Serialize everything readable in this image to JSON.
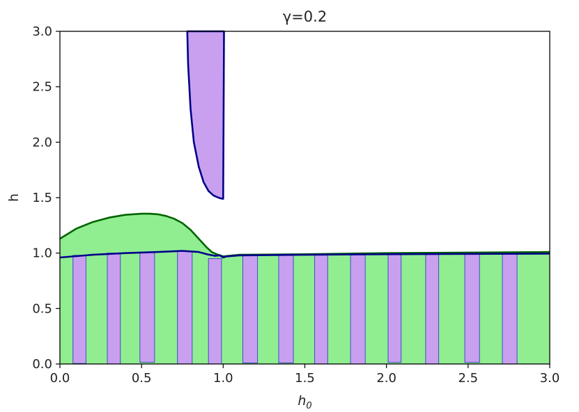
{
  "chart_data": {
    "type": "area",
    "title": "γ=0.2",
    "xlabel": "h",
    "xlabel_subscript": "0",
    "ylabel": "h",
    "xlim": [
      0.0,
      3.0
    ],
    "ylim": [
      0.0,
      3.0
    ],
    "xticks": [
      "0.0",
      "0.5",
      "1.0",
      "1.5",
      "2.0",
      "2.5",
      "3.0"
    ],
    "yticks": [
      "0.0",
      "0.5",
      "1.0",
      "1.5",
      "2.0",
      "2.5",
      "3.0"
    ],
    "grid": false,
    "colors": {
      "green_fill": "#90ee90",
      "green_line": "#006400",
      "purple_fill": "#c8a0ef",
      "purple_line": "#00008b",
      "bar_edge": "#3a4fc0"
    },
    "green_region": {
      "upper_boundary": [
        [
          0.0,
          1.13
        ],
        [
          0.1,
          1.22
        ],
        [
          0.2,
          1.28
        ],
        [
          0.3,
          1.32
        ],
        [
          0.4,
          1.345
        ],
        [
          0.5,
          1.355
        ],
        [
          0.55,
          1.355
        ],
        [
          0.6,
          1.35
        ],
        [
          0.65,
          1.335
        ],
        [
          0.7,
          1.31
        ],
        [
          0.75,
          1.27
        ],
        [
          0.8,
          1.21
        ],
        [
          0.85,
          1.13
        ],
        [
          0.9,
          1.05
        ],
        [
          0.93,
          1.01
        ],
        [
          0.96,
          0.99
        ],
        [
          1.0,
          0.97
        ],
        [
          1.1,
          0.985
        ],
        [
          1.5,
          0.99
        ],
        [
          2.0,
          1.0
        ],
        [
          2.5,
          1.005
        ],
        [
          3.0,
          1.01
        ]
      ],
      "lower_boundary": 0.0
    },
    "blue_line": [
      [
        0.0,
        0.96
      ],
      [
        0.2,
        0.985
      ],
      [
        0.4,
        1.0
      ],
      [
        0.6,
        1.01
      ],
      [
        0.75,
        1.02
      ],
      [
        0.85,
        1.01
      ],
      [
        0.9,
        0.99
      ],
      [
        0.95,
        0.975
      ],
      [
        0.98,
        0.98
      ],
      [
        1.0,
        0.96
      ],
      [
        1.02,
        0.97
      ],
      [
        1.1,
        0.98
      ],
      [
        1.5,
        0.985
      ],
      [
        2.0,
        0.99
      ],
      [
        2.5,
        0.993
      ],
      [
        3.0,
        0.995
      ]
    ],
    "purple_spike": {
      "left_edge": [
        [
          0.78,
          3.0
        ],
        [
          0.785,
          2.7
        ],
        [
          0.8,
          2.3
        ],
        [
          0.82,
          2.0
        ],
        [
          0.85,
          1.78
        ],
        [
          0.88,
          1.64
        ],
        [
          0.91,
          1.56
        ],
        [
          0.94,
          1.52
        ],
        [
          0.97,
          1.5
        ],
        [
          0.995,
          1.49
        ]
      ],
      "right_edge": [
        [
          1.0,
          1.49
        ],
        [
          1.005,
          3.0
        ]
      ]
    },
    "purple_bars": [
      {
        "x0": 0.08,
        "x1": 0.16,
        "y0": 0.005,
        "y1": 0.98
      },
      {
        "x0": 0.29,
        "x1": 0.37,
        "y0": 0.0,
        "y1": 1.0
      },
      {
        "x0": 0.49,
        "x1": 0.58,
        "y0": 0.015,
        "y1": 1.01
      },
      {
        "x0": 0.72,
        "x1": 0.81,
        "y0": 0.0,
        "y1": 1.02
      },
      {
        "x0": 0.91,
        "x1": 0.99,
        "y0": 0.0,
        "y1": 0.95
      },
      {
        "x0": 1.12,
        "x1": 1.21,
        "y0": 0.01,
        "y1": 0.98
      },
      {
        "x0": 1.34,
        "x1": 1.43,
        "y0": 0.01,
        "y1": 0.985
      },
      {
        "x0": 1.56,
        "x1": 1.64,
        "y0": 0.0,
        "y1": 0.99
      },
      {
        "x0": 1.78,
        "x1": 1.87,
        "y0": 0.0,
        "y1": 0.985
      },
      {
        "x0": 2.01,
        "x1": 2.09,
        "y0": 0.015,
        "y1": 0.99
      },
      {
        "x0": 2.24,
        "x1": 2.32,
        "y0": 0.0,
        "y1": 0.99
      },
      {
        "x0": 2.48,
        "x1": 2.57,
        "y0": 0.015,
        "y1": 0.99
      },
      {
        "x0": 2.71,
        "x1": 2.8,
        "y0": 0.0,
        "y1": 0.99
      }
    ]
  }
}
